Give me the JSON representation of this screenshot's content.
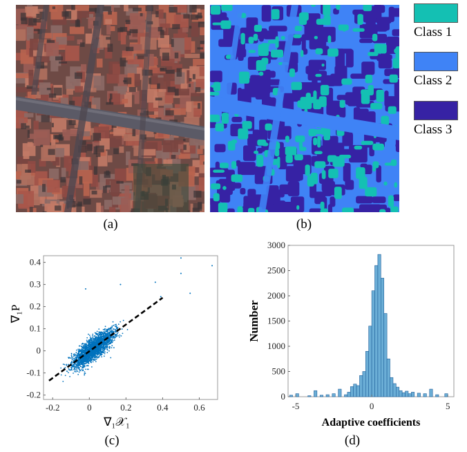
{
  "panels": {
    "a": {
      "caption": "(a)"
    },
    "b": {
      "caption": "(b)"
    },
    "c": {
      "caption": "(c)"
    },
    "d": {
      "caption": "(d)"
    }
  },
  "legend": {
    "items": [
      {
        "label": "Class 1",
        "color": "#14C0B3"
      },
      {
        "label": "Class 2",
        "color": "#3F83F6"
      },
      {
        "label": "Class 3",
        "color": "#3622A4"
      }
    ]
  },
  "chart_data": [
    {
      "type": "scatter",
      "panel": "c",
      "xlabel": "∇₁𝒳₁",
      "ylabel": "∇₁P",
      "xlim": [
        -0.25,
        0.7
      ],
      "ylim": [
        -0.22,
        0.43
      ],
      "xticks": [
        -0.2,
        0,
        0.2,
        0.4,
        0.6
      ],
      "xtick_labels": [
        "-0.2",
        "0",
        "0.2",
        "0.4",
        "0.6"
      ],
      "yticks": [
        -0.2,
        -0.1,
        0,
        0.1,
        0.2,
        0.3,
        0.4
      ],
      "ytick_labels": [
        "-0.2",
        "-0.1",
        "0",
        "0.1",
        "0.2",
        "0.3",
        "0.4"
      ],
      "point_color": "#0072BD",
      "fit_line": {
        "x": [
          -0.22,
          0.4
        ],
        "y": [
          -0.135,
          0.24
        ],
        "style": "dashed",
        "color": "#000000"
      },
      "outliers": [
        [
          0.5,
          0.42
        ],
        [
          0.67,
          0.385
        ],
        [
          0.5,
          0.35
        ],
        [
          0.55,
          0.26
        ],
        [
          0.36,
          0.31
        ],
        [
          0.17,
          0.3
        ],
        [
          -0.02,
          0.28
        ],
        [
          0.39,
          0.245
        ]
      ]
    },
    {
      "type": "bar",
      "panel": "d",
      "xlabel": "Adaptive coefficients",
      "ylabel": "Number",
      "xlim": [
        -5.5,
        5.4
      ],
      "ylim": [
        0,
        3000
      ],
      "xticks": [
        -5,
        0,
        5
      ],
      "xtick_labels": [
        "-5",
        "0",
        "5"
      ],
      "yticks": [
        0,
        500,
        1000,
        1500,
        2000,
        2500,
        3000
      ],
      "ytick_labels": [
        "0",
        "500",
        "1000",
        "1500",
        "2000",
        "2500",
        "3000"
      ],
      "bar_color": "#6BAED6",
      "bin_width": 0.2,
      "bins_x": [
        -5.3,
        -4.9,
        -4.1,
        -3.7,
        -3.3,
        -2.9,
        -2.5,
        -2.1,
        -1.7,
        -1.5,
        -1.3,
        -1.1,
        -0.9,
        -0.7,
        -0.5,
        -0.3,
        -0.1,
        0.1,
        0.3,
        0.5,
        0.7,
        0.9,
        1.1,
        1.3,
        1.5,
        1.7,
        1.9,
        2.1,
        2.3,
        2.5,
        2.7,
        3.1,
        3.5,
        3.9,
        4.3,
        4.9
      ],
      "counts": [
        30,
        60,
        20,
        120,
        30,
        40,
        60,
        150,
        40,
        90,
        200,
        250,
        220,
        420,
        500,
        900,
        1400,
        2100,
        2600,
        2820,
        2350,
        1650,
        750,
        380,
        260,
        190,
        120,
        80,
        110,
        60,
        90,
        70,
        60,
        150,
        40,
        60
      ]
    }
  ]
}
